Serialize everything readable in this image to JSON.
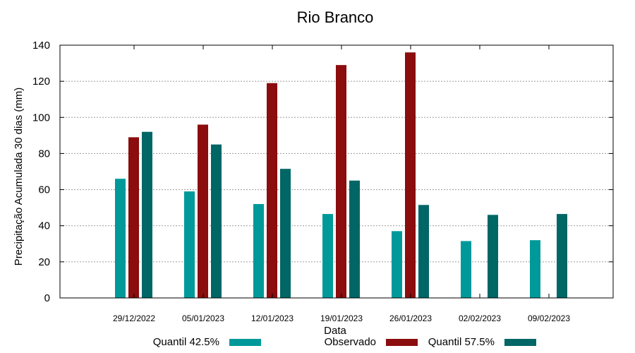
{
  "chart_data": {
    "type": "bar",
    "title": "Rio Branco",
    "xlabel": "Data",
    "ylabel": "Precipitação Acumulada 30 dias (mm)",
    "ylim": [
      0,
      140
    ],
    "yticks": [
      0,
      20,
      40,
      60,
      80,
      100,
      120,
      140
    ],
    "grid": true,
    "legend_position": "bottom",
    "categories": [
      "29/12/2022",
      "05/01/2023",
      "12/01/2023",
      "19/01/2023",
      "26/01/2023",
      "02/02/2023",
      "09/02/2023"
    ],
    "series": [
      {
        "name": "Quantil 42.5%",
        "color": "#009999",
        "values": [
          66,
          59,
          52,
          46.5,
          37,
          31.5,
          32
        ]
      },
      {
        "name": "Observado",
        "color": "#8b0d0d",
        "values": [
          89,
          96,
          119,
          129,
          136,
          null,
          null
        ]
      },
      {
        "name": "Quantil 57.5%",
        "color": "#006666",
        "values": [
          92,
          85,
          71.5,
          65,
          51.5,
          46,
          46.5
        ]
      }
    ]
  }
}
